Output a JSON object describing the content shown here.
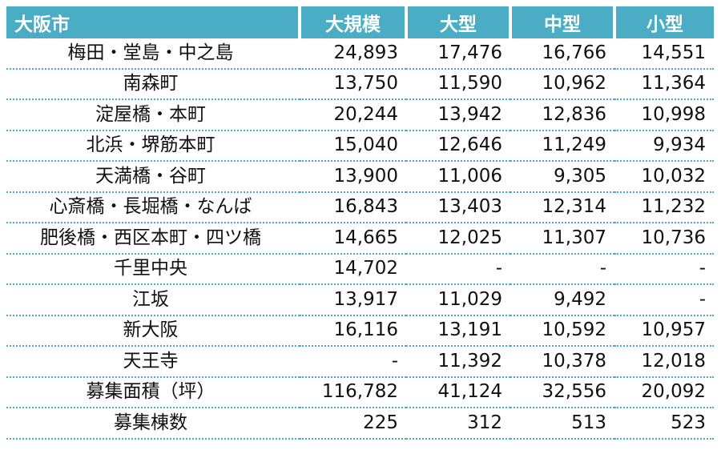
{
  "table": {
    "headers": [
      "大阪市",
      "大規模",
      "大型",
      "中型",
      "小型"
    ],
    "rows": [
      [
        "梅田・堂島・中之島",
        "24,893",
        "17,476",
        "16,766",
        "14,551"
      ],
      [
        "南森町",
        "13,750",
        "11,590",
        "10,962",
        "11,364"
      ],
      [
        "淀屋橋・本町",
        "20,244",
        "13,942",
        "12,836",
        "10,998"
      ],
      [
        "北浜・堺筋本町",
        "15,040",
        "12,646",
        "11,249",
        "9,934"
      ],
      [
        "天満橋・谷町",
        "13,900",
        "11,006",
        "9,305",
        "10,032"
      ],
      [
        "心斎橋・長堀橋・なんば",
        "16,843",
        "13,403",
        "12,314",
        "11,232"
      ],
      [
        "肥後橋・西区本町・四ツ橋",
        "14,665",
        "12,025",
        "11,307",
        "10,736"
      ],
      [
        "千里中央",
        "14,702",
        "-",
        "-",
        "-"
      ],
      [
        "江坂",
        "13,917",
        "11,029",
        "9,492",
        "-"
      ],
      [
        "新大阪",
        "16,116",
        "13,191",
        "10,592",
        "10,957"
      ],
      [
        "天王寺",
        "-",
        "11,392",
        "10,378",
        "12,018"
      ],
      [
        "募集面積（坪）",
        "116,782",
        "41,124",
        "32,556",
        "20,092"
      ],
      [
        "募集棟数",
        "225",
        "312",
        "513",
        "523"
      ]
    ]
  },
  "colors": {
    "header_bg": "#4bacc6",
    "header_text": "#ffffff",
    "divider": "#4bacc6"
  }
}
